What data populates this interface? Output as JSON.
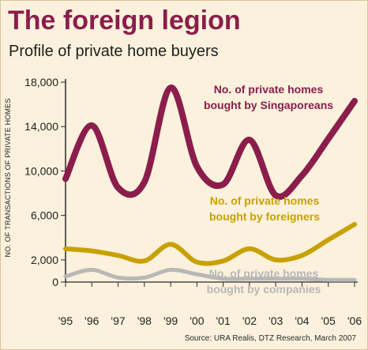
{
  "header": {
    "title": "The foreign legion",
    "subtitle": "Profile of private home buyers"
  },
  "source": "Source: URA Realis, DTZ Research, March 2007",
  "colors": {
    "background": "#fbf1dc",
    "title": "#8b1d4c",
    "singaporeans": "#8b1d4c",
    "foreigners": "#c8a100",
    "companies": "#b8b8b8",
    "grid": "#d9c59f",
    "axis": "#2a2a2a"
  },
  "chart_data": {
    "type": "line",
    "title": "The foreign legion",
    "subtitle": "Profile of private home buyers",
    "xlabel": "",
    "ylabel": "NO. OF TRANSACTIONS OF PRIVATE HOMES",
    "x": [
      "'95",
      "'96",
      "'97",
      "'98",
      "'99",
      "'00",
      "'01",
      "'02",
      "'03",
      "'04",
      "'05",
      "'06"
    ],
    "ylim": [
      0,
      18000
    ],
    "yticks": [
      0,
      2000,
      6000,
      10000,
      14000,
      18000
    ],
    "ytick_labels": [
      "0",
      "2,000",
      "6,000",
      "10,000",
      "14,000",
      "18,000"
    ],
    "grid": false,
    "series": [
      {
        "name": "No. of private homes bought by Singaporeans",
        "label_lines": [
          "No. of private homes",
          "bought by Singaporeans"
        ],
        "color": "#8b1d4c",
        "values": [
          9300,
          14100,
          8500,
          9000,
          17500,
          10400,
          8800,
          12800,
          7800,
          9600,
          12900,
          16300
        ]
      },
      {
        "name": "No. of private homes bought by foreigners",
        "label_lines": [
          "No. of private homes",
          "bought by foreigners"
        ],
        "color": "#c8a100",
        "values": [
          3000,
          2800,
          2400,
          1900,
          3400,
          1800,
          1900,
          3000,
          2000,
          2400,
          3800,
          5200
        ]
      },
      {
        "name": "No. of private homes bought by companies",
        "label_lines": [
          "No. of private homes",
          "bought by companies"
        ],
        "color": "#b8b8b8",
        "values": [
          500,
          1100,
          400,
          400,
          1100,
          700,
          300,
          300,
          300,
          300,
          200,
          200
        ]
      }
    ]
  }
}
